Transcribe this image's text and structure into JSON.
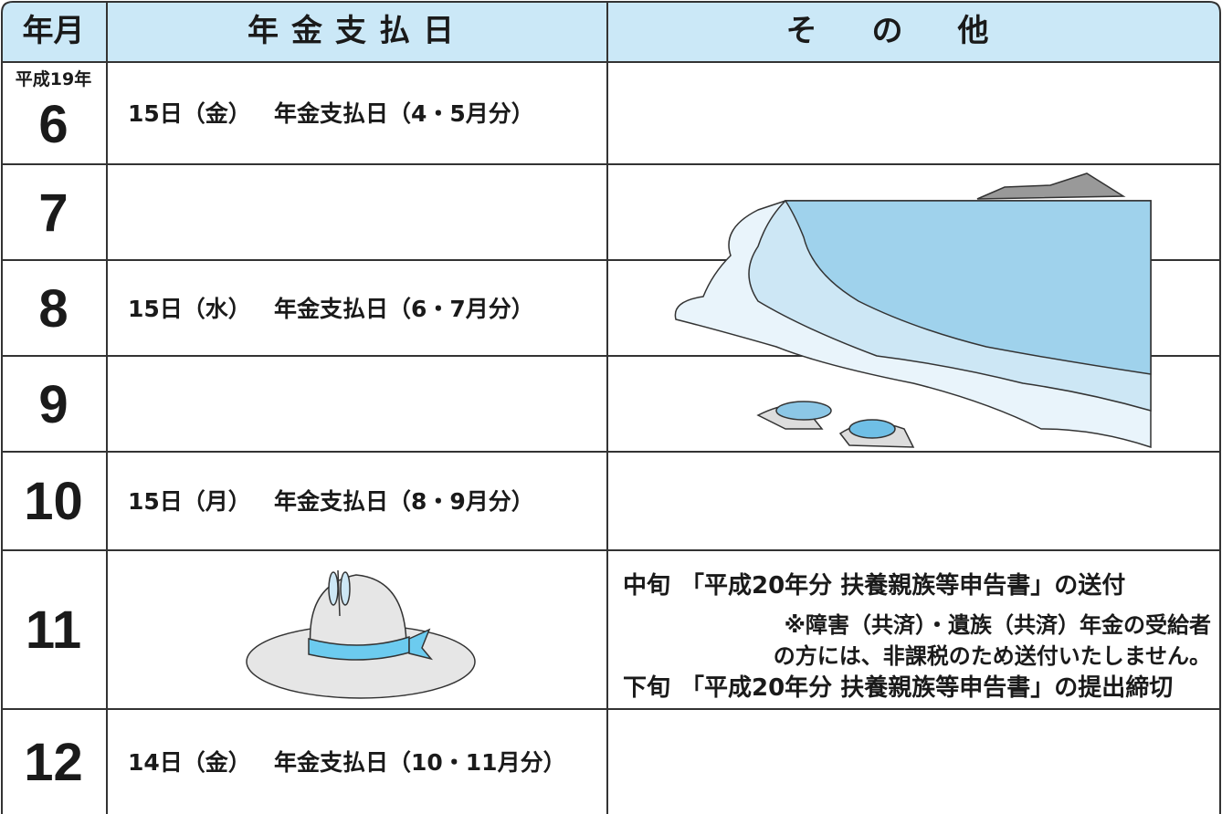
{
  "header": {
    "columns": [
      "年月",
      "年金支払日",
      "その他"
    ]
  },
  "rows": [
    {
      "era": "平成19年",
      "month": "6",
      "date": "15日（金）",
      "payment": "年金支払日（4・5月分）"
    },
    {
      "month": "7"
    },
    {
      "month": "8",
      "date": "15日（水）",
      "payment": "年金支払日（6・7月分）"
    },
    {
      "month": "9"
    },
    {
      "month": "10",
      "date": "15日（月）",
      "payment": "年金支払日（8・9月分）"
    },
    {
      "month": "11",
      "notes": [
        {
          "period": "中旬",
          "text": "「平成20年分 扶養親族等申告書」の送付"
        },
        {
          "text": "※障害（共済）・遺族（共済）年金の受給者"
        },
        {
          "text": "の方には、非課税のため送付いたしません。"
        },
        {
          "period": "下旬",
          "text": "「平成20年分 扶養親族等申告書」の提出締切"
        }
      ]
    },
    {
      "month": "12",
      "date": "14日（金）",
      "payment": "年金支払日（10・11月分）"
    }
  ]
}
